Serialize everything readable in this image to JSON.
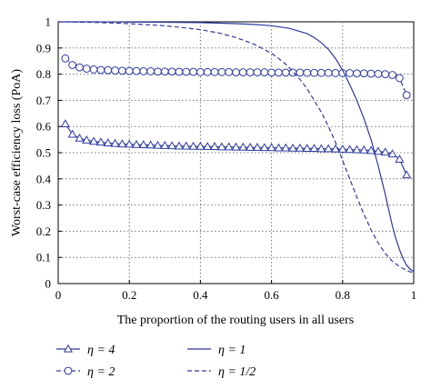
{
  "chart_data": {
    "type": "line",
    "title": "",
    "xlabel": "The proportion of the routing users in all users",
    "ylabel": "Worst-case efficiency loss (PoA)",
    "xlim": [
      0,
      1
    ],
    "ylim": [
      0,
      1
    ],
    "xticks": [
      "0",
      "0.2",
      "0.4",
      "0.6",
      "0.8",
      "1"
    ],
    "yticks": [
      "0",
      "0.1",
      "0.2",
      "0.3",
      "0.4",
      "0.5",
      "0.6",
      "0.7",
      "0.8",
      "0.9",
      "1"
    ],
    "grid": "dotted",
    "legend_position": "bottom",
    "series": [
      {
        "name": "η = 4",
        "marker": "triangle",
        "style": "solid",
        "color": "#2e3a9e",
        "x": [
          0.02,
          0.04,
          0.06,
          0.08,
          0.1,
          0.12,
          0.14,
          0.16,
          0.18,
          0.2,
          0.22,
          0.24,
          0.26,
          0.28,
          0.3,
          0.32,
          0.34,
          0.36,
          0.38,
          0.4,
          0.42,
          0.44,
          0.46,
          0.48,
          0.5,
          0.52,
          0.54,
          0.56,
          0.58,
          0.6,
          0.62,
          0.64,
          0.66,
          0.68,
          0.7,
          0.72,
          0.74,
          0.76,
          0.78,
          0.8,
          0.82,
          0.84,
          0.86,
          0.88,
          0.9,
          0.92,
          0.94,
          0.96,
          0.98
        ],
        "y": [
          0.61,
          0.57,
          0.555,
          0.548,
          0.543,
          0.54,
          0.537,
          0.535,
          0.533,
          0.532,
          0.531,
          0.53,
          0.529,
          0.528,
          0.527,
          0.526,
          0.525,
          0.525,
          0.524,
          0.524,
          0.523,
          0.523,
          0.522,
          0.522,
          0.521,
          0.521,
          0.52,
          0.52,
          0.519,
          0.519,
          0.518,
          0.518,
          0.517,
          0.517,
          0.516,
          0.516,
          0.515,
          0.515,
          0.514,
          0.513,
          0.512,
          0.511,
          0.51,
          0.508,
          0.505,
          0.502,
          0.495,
          0.475,
          0.415
        ]
      },
      {
        "name": "η = 2",
        "marker": "circle",
        "style": "dashed",
        "color": "#2e3a9e",
        "x": [
          0.02,
          0.04,
          0.06,
          0.08,
          0.1,
          0.12,
          0.14,
          0.16,
          0.18,
          0.2,
          0.22,
          0.24,
          0.26,
          0.28,
          0.3,
          0.32,
          0.34,
          0.36,
          0.38,
          0.4,
          0.42,
          0.44,
          0.46,
          0.48,
          0.5,
          0.52,
          0.54,
          0.56,
          0.58,
          0.6,
          0.62,
          0.64,
          0.66,
          0.68,
          0.7,
          0.72,
          0.74,
          0.76,
          0.78,
          0.8,
          0.82,
          0.84,
          0.86,
          0.88,
          0.9,
          0.92,
          0.94,
          0.96,
          0.98
        ],
        "y": [
          0.86,
          0.835,
          0.826,
          0.821,
          0.818,
          0.816,
          0.815,
          0.814,
          0.813,
          0.812,
          0.812,
          0.811,
          0.811,
          0.81,
          0.81,
          0.81,
          0.809,
          0.809,
          0.809,
          0.808,
          0.808,
          0.808,
          0.808,
          0.808,
          0.807,
          0.807,
          0.807,
          0.807,
          0.807,
          0.806,
          0.806,
          0.806,
          0.806,
          0.806,
          0.805,
          0.805,
          0.805,
          0.805,
          0.804,
          0.804,
          0.804,
          0.803,
          0.803,
          0.802,
          0.801,
          0.8,
          0.797,
          0.785,
          0.72
        ]
      },
      {
        "name": "η = 1",
        "marker": "none",
        "style": "solid",
        "color": "#2e3a9e",
        "x": [
          0,
          0.1,
          0.2,
          0.3,
          0.4,
          0.5,
          0.55,
          0.6,
          0.65,
          0.7,
          0.72,
          0.74,
          0.76,
          0.78,
          0.8,
          0.82,
          0.84,
          0.86,
          0.88,
          0.9,
          0.92,
          0.93,
          0.94,
          0.95,
          0.96,
          0.97,
          0.98,
          0.99,
          1.0
        ],
        "y": [
          1.0,
          1.0,
          0.999,
          0.998,
          0.997,
          0.993,
          0.99,
          0.985,
          0.975,
          0.955,
          0.94,
          0.92,
          0.895,
          0.86,
          0.815,
          0.76,
          0.7,
          0.63,
          0.55,
          0.45,
          0.34,
          0.28,
          0.22,
          0.17,
          0.13,
          0.095,
          0.07,
          0.055,
          0.045
        ]
      },
      {
        "name": "η = 1/2",
        "marker": "none",
        "style": "dashed",
        "color": "#2e3a9e",
        "x": [
          0,
          0.1,
          0.2,
          0.3,
          0.35,
          0.4,
          0.45,
          0.5,
          0.55,
          0.6,
          0.62,
          0.64,
          0.66,
          0.68,
          0.7,
          0.72,
          0.74,
          0.76,
          0.78,
          0.8,
          0.82,
          0.84,
          0.86,
          0.88,
          0.9,
          0.92,
          0.94,
          0.96,
          0.98,
          1.0
        ],
        "y": [
          1.0,
          0.998,
          0.993,
          0.985,
          0.978,
          0.97,
          0.958,
          0.94,
          0.915,
          0.88,
          0.86,
          0.838,
          0.81,
          0.78,
          0.745,
          0.7,
          0.655,
          0.6,
          0.54,
          0.47,
          0.4,
          0.33,
          0.265,
          0.205,
          0.155,
          0.115,
          0.085,
          0.065,
          0.05,
          0.04
        ]
      }
    ]
  }
}
